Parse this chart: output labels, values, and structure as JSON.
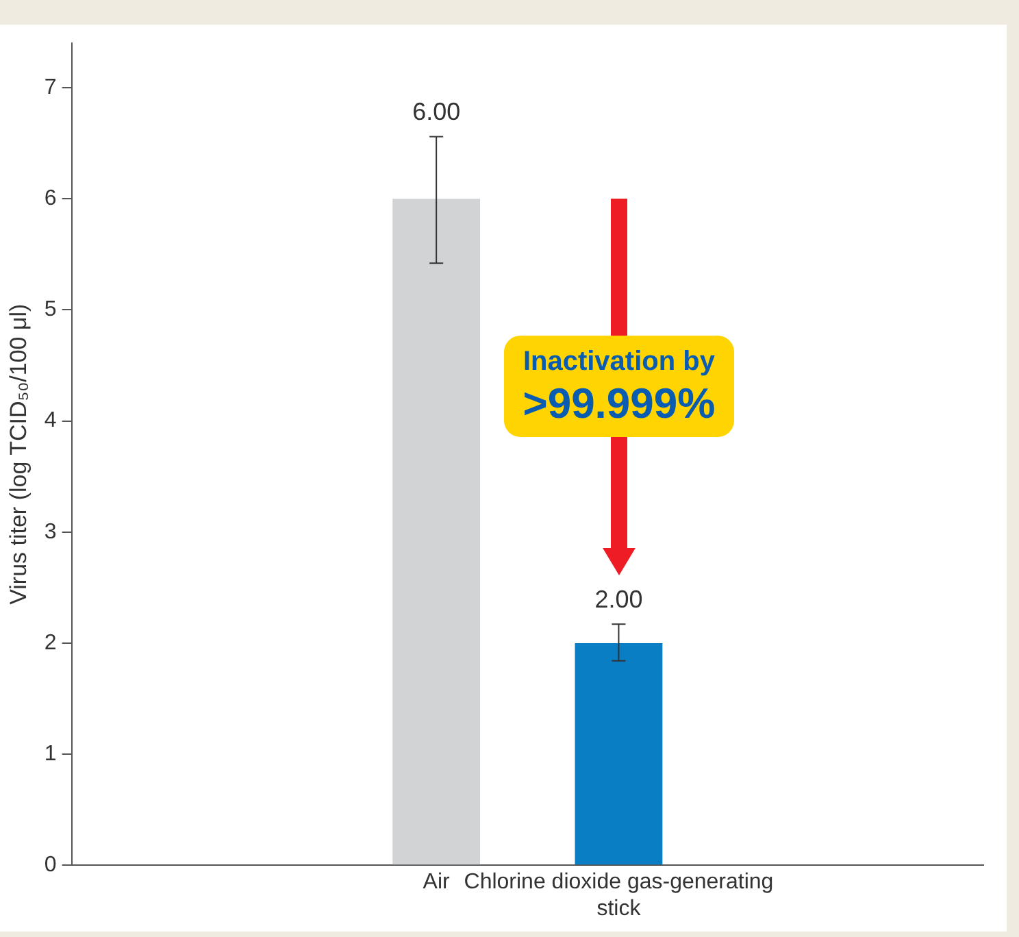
{
  "chart_data": {
    "type": "bar",
    "ylabel": "Virus titer (log TCID₅₀/100 μl)",
    "categories": [
      "Air",
      "Chlorine dioxide gas-generating stick"
    ],
    "values": [
      6,
      2
    ],
    "colors": [
      "#d1d3d4",
      "#0a7ec4"
    ],
    "errors": [
      [
        5.42,
        6.56
      ],
      [
        1.84,
        2.17
      ]
    ],
    "value_labels": [
      "6.00",
      "2.00"
    ],
    "annotations": [
      "Inactivation by",
      ">99.999%"
    ],
    "ylim": [
      0,
      7.4
    ],
    "yticks": [
      0,
      1,
      2,
      3,
      4,
      5,
      6,
      7
    ],
    "grid": false,
    "legend": false
  }
}
